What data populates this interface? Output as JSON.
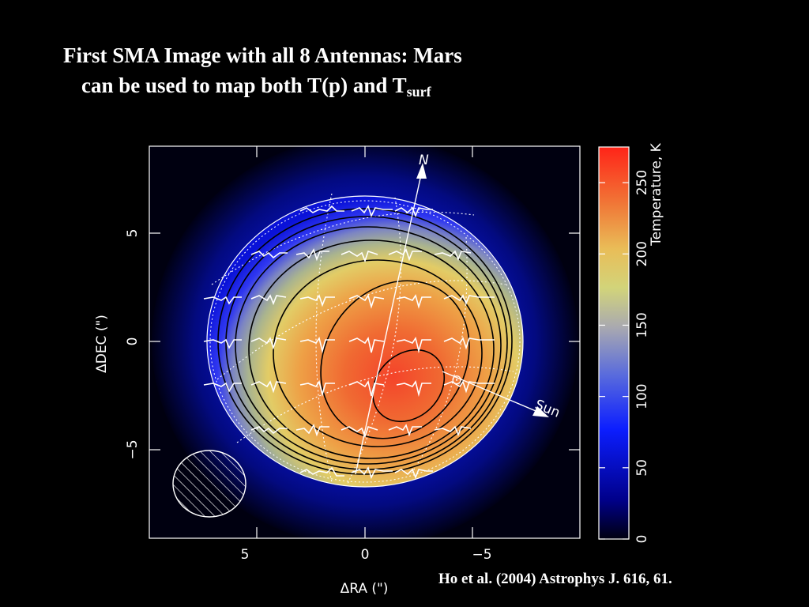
{
  "title": {
    "line1": "First SMA Image with all 8 Antennas: Mars",
    "line2_main": "can be used to map both T(p) and T",
    "line2_sub": "surf"
  },
  "citation": "Ho et al. (2004) Astrophys J. 616, 61.",
  "map": {
    "x_axis_label": "ΔRA (\")",
    "y_axis_label": "ΔDEC (\")",
    "x_ticks": [
      "5",
      "0",
      "−5"
    ],
    "y_ticks": [
      "5",
      "0",
      "−5"
    ],
    "north_label": "N",
    "sun_label": "Sun",
    "subsolar_symbol": "⊙"
  },
  "colorbar": {
    "label": "Temperature, K",
    "ticks": [
      "0",
      "50",
      "100",
      "150",
      "200",
      "250"
    ],
    "range": [
      0,
      275
    ]
  },
  "colors": {
    "background": "#000000",
    "text": "#ffffff"
  }
}
